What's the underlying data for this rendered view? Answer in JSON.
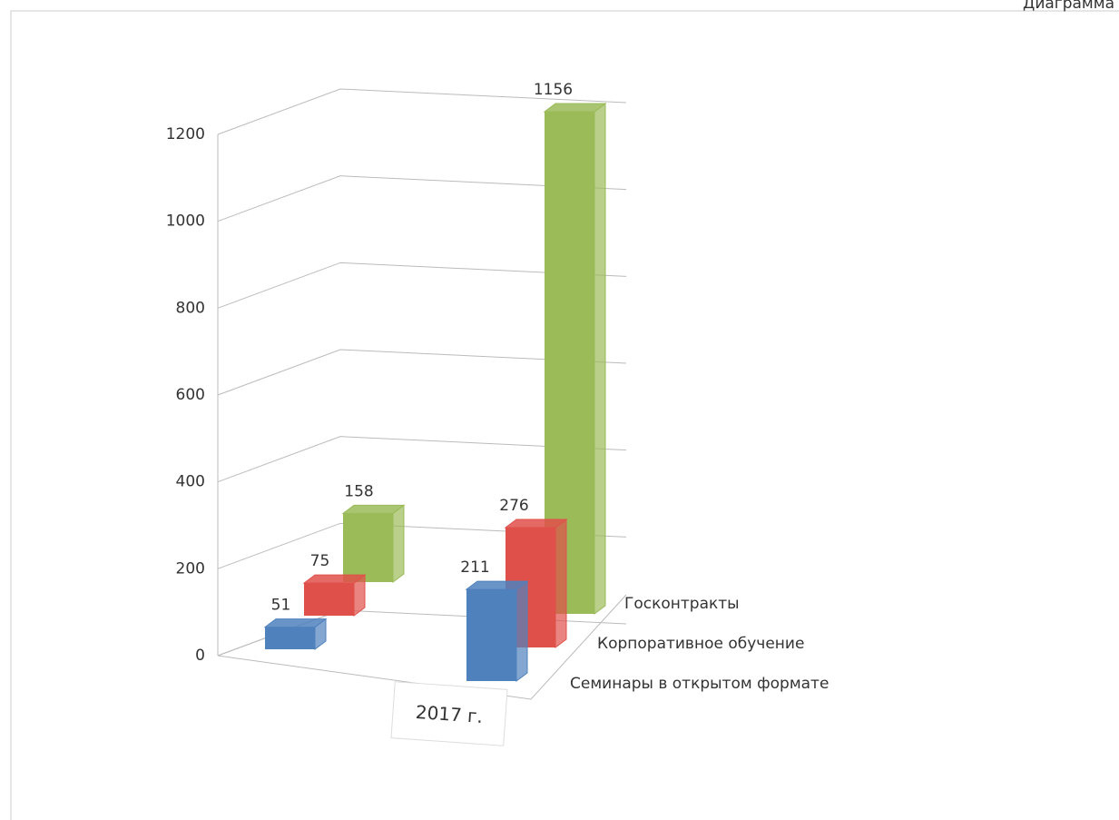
{
  "chart_data": {
    "type": "bar3d",
    "title": "Диаграмма",
    "categories": [
      null,
      "2017 г."
    ],
    "series": [
      {
        "name": "Семинары в открытом формате",
        "color": "#4f81bd",
        "values": [
          51,
          211
        ]
      },
      {
        "name": "Корпоративное обучение",
        "color": "#e0504a",
        "values": [
          75,
          276
        ]
      },
      {
        "name": "Госконтракты",
        "color": "#9bbb59",
        "values": [
          158,
          1156
        ]
      }
    ],
    "ylim": [
      0,
      1200
    ],
    "yticks": [
      0,
      200,
      400,
      600,
      800,
      1000,
      1200
    ],
    "grid": true
  }
}
